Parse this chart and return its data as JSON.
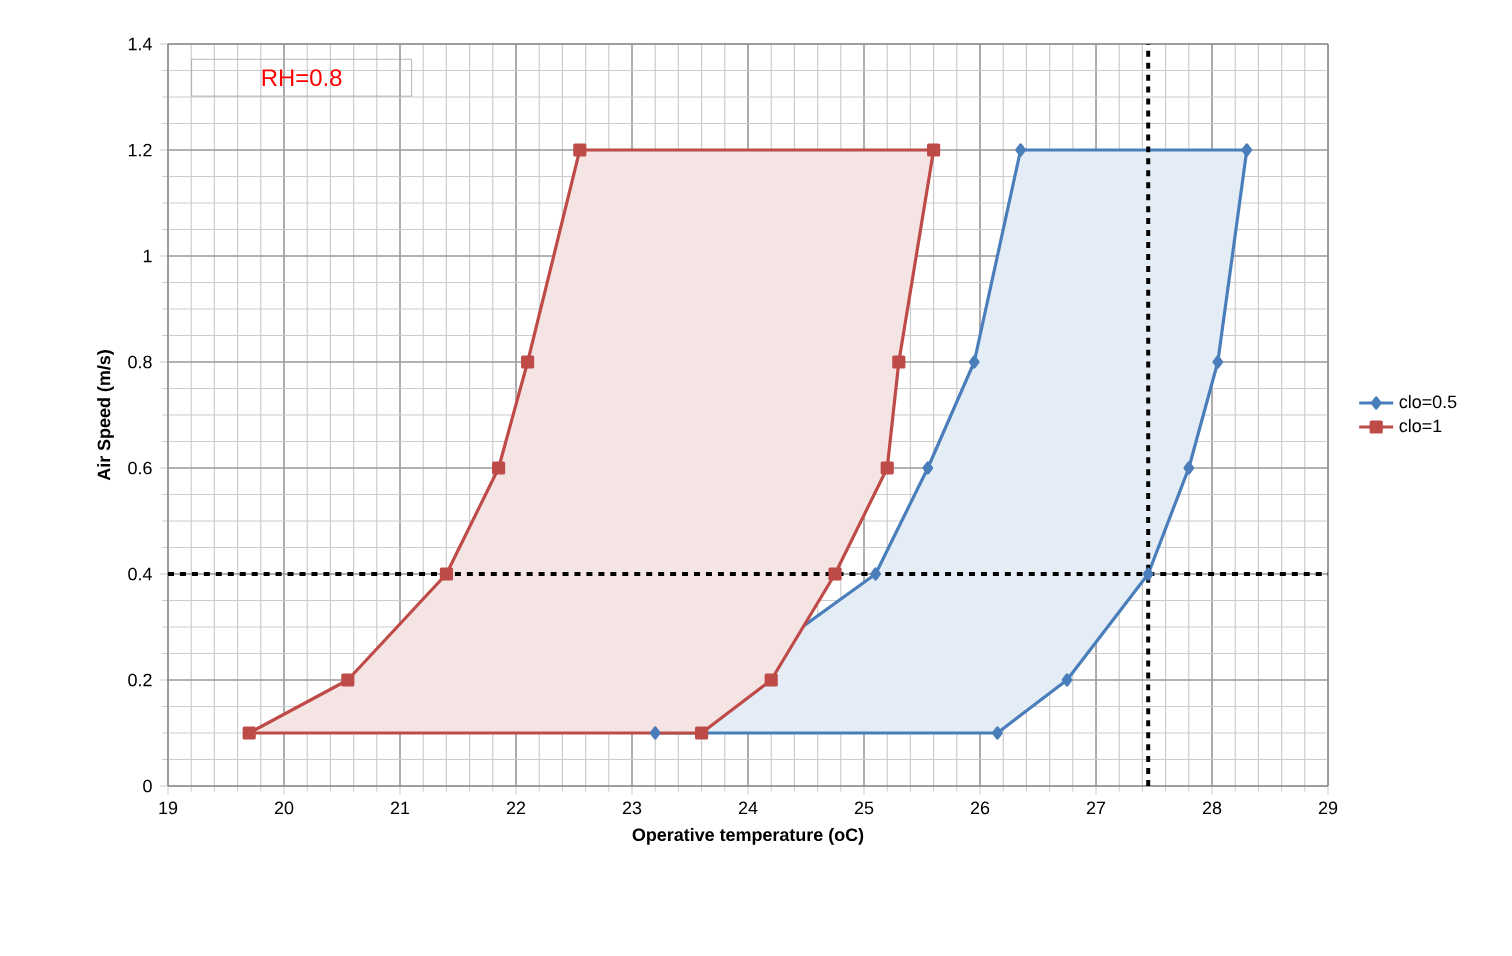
{
  "chart_data": {
    "type": "area",
    "xlabel": "Operative temperature (oC)",
    "ylabel": "Air Speed (m/s)",
    "annotations": [
      "RH=0.8"
    ],
    "series": [
      {
        "name": "clo=0.5",
        "color": "#4a7ebb",
        "marker": "diamond",
        "x": [
          23.2,
          25.1,
          25.55,
          25.95,
          26.35,
          28.3,
          28.05,
          27.8,
          27.45,
          26.75,
          26.15
        ],
        "values": [
          0.1,
          0.4,
          0.6,
          0.8,
          1.2,
          1.2,
          0.8,
          0.6,
          0.4,
          0.2,
          0.1
        ]
      },
      {
        "name": "clo=1",
        "color": "#be4b48",
        "marker": "square",
        "x": [
          19.7,
          20.55,
          21.4,
          21.85,
          22.1,
          22.55,
          25.6,
          25.3,
          25.2,
          24.75,
          24.2,
          23.6
        ],
        "values": [
          0.1,
          0.2,
          0.4,
          0.6,
          0.8,
          1.2,
          1.2,
          0.8,
          0.6,
          0.4,
          0.2,
          0.1
        ]
      }
    ],
    "xlim": [
      19,
      29
    ],
    "ylim": [
      0,
      1.4
    ],
    "xticks": [
      19,
      20,
      21,
      22,
      23,
      24,
      25,
      26,
      27,
      28,
      29
    ],
    "yticks": [
      0,
      0.2,
      0.4,
      0.6,
      0.8,
      1,
      1.2,
      1.4
    ],
    "ref_lines": [
      {
        "axis": "x",
        "value": 27.45,
        "color": "#000000",
        "line_style": "dashed"
      },
      {
        "axis": "y",
        "value": 0.4,
        "color": "#000000",
        "line_style": "dashed"
      }
    ],
    "grid": true,
    "legend": "right"
  }
}
